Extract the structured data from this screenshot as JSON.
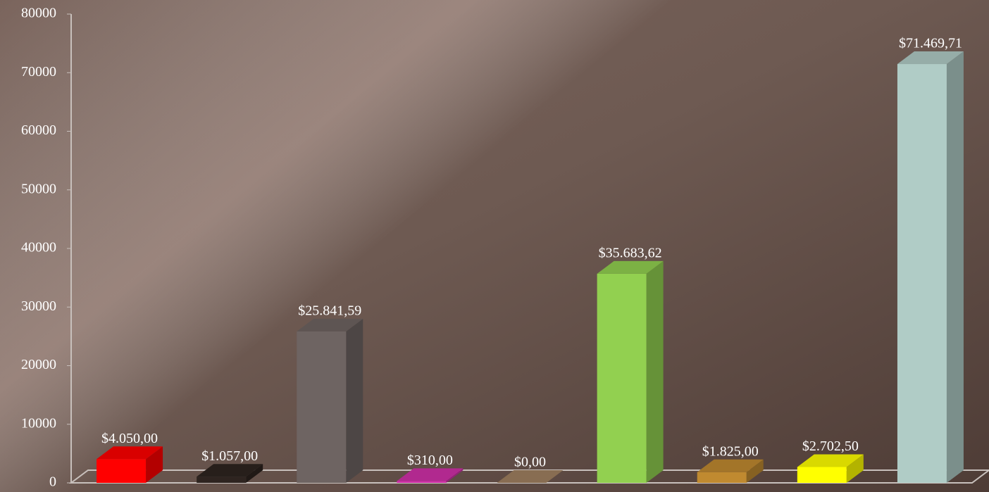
{
  "chart_data": {
    "type": "bar3d",
    "categories": [
      null,
      null,
      null,
      null,
      null,
      null,
      null,
      null,
      null
    ],
    "values": [
      4050,
      1057,
      25841.59,
      310,
      0,
      35683.62,
      1825,
      2702.5,
      71469.71
    ],
    "value_labels": [
      "$4.050,00",
      "$1.057,00",
      "$25.841,59",
      "$310,00",
      "$0,00",
      "$35.683,62",
      "$1.825,00",
      "$2.702,50",
      "$71.469,71"
    ],
    "colors": [
      "#ff0000",
      "#2e2420",
      "#6e6462",
      "#d030a8",
      "#a08060",
      "#92d050",
      "#c08a30",
      "#ffff00",
      "#b0ccc6"
    ],
    "ylim": [
      0,
      80000
    ],
    "yticks": [
      0,
      10000,
      20000,
      30000,
      40000,
      50000,
      60000,
      70000,
      80000
    ],
    "grid": false
  }
}
